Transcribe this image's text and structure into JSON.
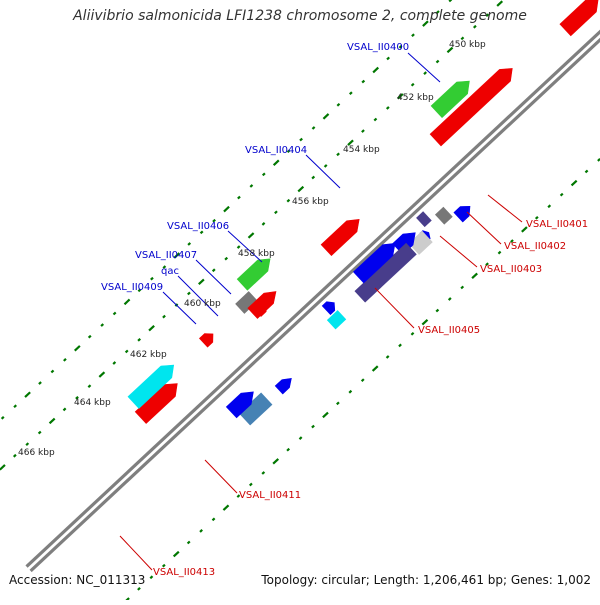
{
  "title": "Aliivibrio salmonicida LFI1238 chromosome 2, complete genome",
  "footer": {
    "accession": "Accession: NC_011313",
    "summary": "Topology: circular; Length: 1,206,461 bp; Genes: 1,002"
  },
  "colors": {
    "backbone": "#7f7f7f",
    "tick": "#007700",
    "red": "#ee0000",
    "green": "#33cc33",
    "blue": "#0000ee",
    "cyan": "#00e5ee",
    "steel": "#4682b4",
    "slate": "#483d8b",
    "gray": "#777777",
    "lightgray": "#cccccc",
    "label_blue": "#0000cc",
    "label_red": "#cc0000"
  },
  "scale_labels": [
    "450 kbp",
    "452 kbp",
    "454 kbp",
    "456 kbp",
    "458 kbp",
    "460 kbp",
    "462 kbp",
    "464 kbp",
    "466 kbp"
  ],
  "gene_labels_outer": [
    "VSAL_II0400",
    "VSAL_II0404",
    "VSAL_II0406",
    "VSAL_II0407",
    "qac",
    "VSAL_II0409"
  ],
  "gene_labels_inner": [
    "VSAL_II0401",
    "VSAL_II0402",
    "VSAL_II0403",
    "VSAL_II0405",
    "VSAL_II0411",
    "VSAL_II0413"
  ]
}
